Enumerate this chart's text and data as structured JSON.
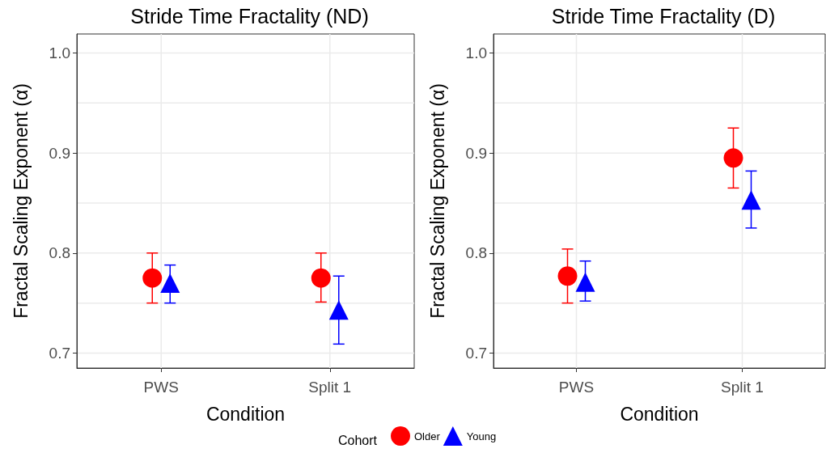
{
  "chart_data": [
    {
      "type": "scatter",
      "title": "Stride Time Fractality (ND)",
      "xlabel": "Condition",
      "ylabel": "Fractal Scaling Exponent (α)",
      "categories": [
        "PWS",
        "Split 1"
      ],
      "ylim": [
        0.685,
        1.019
      ],
      "yticks": [
        0.7,
        0.8,
        0.9,
        {
          "value": 1,
          "label": "1.0"
        }
      ],
      "grid": true,
      "legend": false,
      "series": [
        {
          "color": "#ff0000",
          "marker": "circle",
          "values": [
            0.775,
            0.775
          ],
          "errors": [
            [
              0.75,
              0.8
            ],
            [
              0.751,
              0.8
            ]
          ]
        },
        {
          "color": "#0000ff",
          "marker": "triangle",
          "values": [
            0.77,
            0.743
          ],
          "errors": [
            [
              0.75,
              0.788
            ],
            [
              0.709,
              0.777
            ]
          ]
        }
      ]
    },
    {
      "type": "scatter",
      "title": "Stride Time Fractality (D)",
      "xlabel": "Condition",
      "ylabel": "Fractal Scaling Exponent (α)",
      "legend_title": "Cohort",
      "categories": [
        "PWS",
        "Split 1"
      ],
      "ylim": [
        0.685,
        1.019
      ],
      "yticks": [
        0.7,
        0.8,
        0.9,
        {
          "value": 1,
          "label": "1.0"
        }
      ],
      "grid": true,
      "legend": "bottom",
      "series": [
        {
          "name": "Older",
          "color": "#ff0000",
          "marker": "circle",
          "values": [
            0.777,
            0.895
          ],
          "errors": [
            [
              0.75,
              0.804
            ],
            [
              0.865,
              0.925
            ]
          ]
        },
        {
          "name": "Young",
          "color": "#0000ff",
          "marker": "triangle",
          "values": [
            0.771,
            0.853
          ],
          "errors": [
            [
              0.752,
              0.792
            ],
            [
              0.825,
              0.882
            ]
          ]
        }
      ]
    }
  ]
}
